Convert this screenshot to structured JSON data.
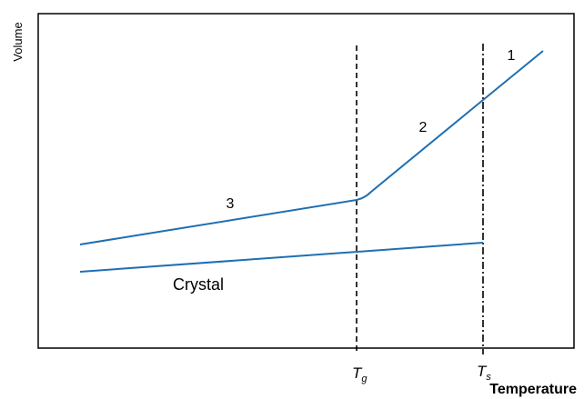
{
  "axes": {
    "ylabel": "Volume",
    "xlabel": "Temperature"
  },
  "markers": [
    {
      "symbol": "T",
      "subscript": "g"
    },
    {
      "symbol": "T",
      "subscript": "s"
    }
  ],
  "curve_labels": {
    "region_1": "1",
    "region_2": "2",
    "region_3": "3",
    "crystal": "Crystal"
  },
  "colors": {
    "curve": "#1f6fb2",
    "frame": "#000000"
  }
}
